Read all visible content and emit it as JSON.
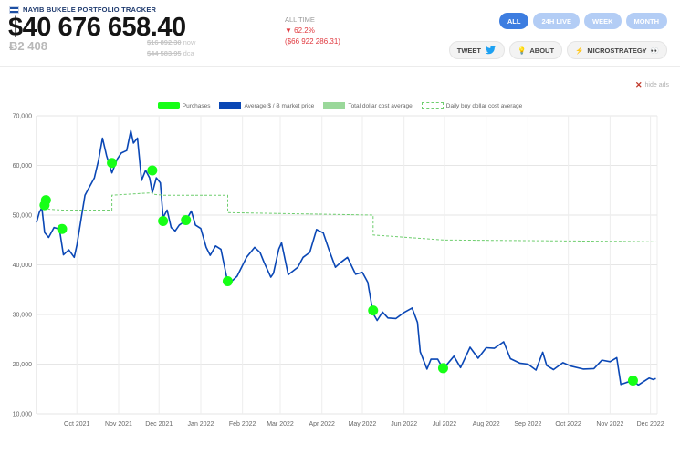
{
  "header": {
    "brand": "NAYIB BUKELE PORTFOLIO TRACKER",
    "portfolio_value": "$40 676 658.40",
    "btc_amount": "Ƀ2 408",
    "price_now": "$16 892.30",
    "price_now_label": "now",
    "price_avg": "$44 583.95",
    "price_avg_label": "dca"
  },
  "alltime": {
    "label": "ALL TIME",
    "percent": "▼ 62.2%",
    "delta": "($66 922 286.31)"
  },
  "range_buttons": [
    "ALL",
    "24H LIVE",
    "WEEK",
    "MONTH"
  ],
  "action_buttons": {
    "tweet": "TWEET",
    "about": "ABOUT",
    "microstrategy": "MICROSTRATEGY",
    "about_icon": "lightbulb-icon",
    "microstrategy_icon": "lightning-icon",
    "microstrategy_suffix": "👀"
  },
  "hide_ads": "hide ads",
  "colors": {
    "price_line": "#0a47b5",
    "purchase_marker": "#16ff16",
    "dca_line": "#6fce6f",
    "accent": "#3d7de0",
    "negative": "#e0383e"
  },
  "chart_data": {
    "type": "line",
    "legend": [
      "Purchases",
      "Average $ / Ƀ market price",
      "Total dollar cost average",
      "Daily buy dollar cost average"
    ],
    "legend_position": "top-center",
    "grid": true,
    "ylim": [
      10000,
      70000
    ],
    "yticks": [
      10000,
      20000,
      30000,
      40000,
      50000,
      60000,
      70000
    ],
    "ytick_labels": [
      "10,000",
      "20,000",
      "30,000",
      "40,000",
      "50,000",
      "60,000",
      "70,000"
    ],
    "xlim": [
      "2021-09-01",
      "2022-12-06"
    ],
    "xticks": [
      "2021-10-01",
      "2021-11-01",
      "2021-12-01",
      "2022-01-01",
      "2022-02-01",
      "2022-03-01",
      "2022-04-01",
      "2022-05-01",
      "2022-06-01",
      "2022-07-01",
      "2022-08-01",
      "2022-09-01",
      "2022-10-01",
      "2022-11-01",
      "2022-12-01"
    ],
    "xtick_labels": [
      "Oct 2021",
      "Nov 2021",
      "Dec 2021",
      "Jan 2022",
      "Feb 2022",
      "Mar 2022",
      "Apr 2022",
      "May 2022",
      "Jun 2022",
      "Jul 2022",
      "Aug 2022",
      "Sep 2022",
      "Oct 2022",
      "Nov 2022",
      "Dec 2022"
    ],
    "series": [
      {
        "name": "Average $ / Ƀ market price",
        "points": [
          [
            "2021-09-01",
            48500
          ],
          [
            "2021-09-03",
            50500
          ],
          [
            "2021-09-05",
            51500
          ],
          [
            "2021-09-07",
            46500
          ],
          [
            "2021-09-10",
            45500
          ],
          [
            "2021-09-14",
            47500
          ],
          [
            "2021-09-18",
            47200
          ],
          [
            "2021-09-21",
            42000
          ],
          [
            "2021-09-25",
            43000
          ],
          [
            "2021-09-29",
            41500
          ],
          [
            "2021-10-01",
            44000
          ],
          [
            "2021-10-04",
            49000
          ],
          [
            "2021-10-07",
            54000
          ],
          [
            "2021-10-10",
            55500
          ],
          [
            "2021-10-14",
            57500
          ],
          [
            "2021-10-17",
            61000
          ],
          [
            "2021-10-20",
            65500
          ],
          [
            "2021-10-23",
            62000
          ],
          [
            "2021-10-27",
            58500
          ],
          [
            "2021-10-31",
            61300
          ],
          [
            "2021-11-03",
            62500
          ],
          [
            "2021-11-07",
            63000
          ],
          [
            "2021-11-10",
            67000
          ],
          [
            "2021-11-12",
            64500
          ],
          [
            "2021-11-15",
            65500
          ],
          [
            "2021-11-18",
            57000
          ],
          [
            "2021-11-21",
            59000
          ],
          [
            "2021-11-24",
            57500
          ],
          [
            "2021-11-26",
            54500
          ],
          [
            "2021-11-29",
            57500
          ],
          [
            "2021-12-02",
            56500
          ],
          [
            "2021-12-04",
            49500
          ],
          [
            "2021-12-07",
            51000
          ],
          [
            "2021-12-10",
            47500
          ],
          [
            "2021-12-13",
            46800
          ],
          [
            "2021-12-16",
            48000
          ],
          [
            "2021-12-21",
            48900
          ],
          [
            "2021-12-25",
            50800
          ],
          [
            "2021-12-28",
            48000
          ],
          [
            "2022-01-01",
            47300
          ],
          [
            "2022-01-05",
            43500
          ],
          [
            "2022-01-08",
            41900
          ],
          [
            "2022-01-12",
            43800
          ],
          [
            "2022-01-16",
            43100
          ],
          [
            "2022-01-21",
            36500
          ],
          [
            "2022-01-24",
            36700
          ],
          [
            "2022-01-28",
            37700
          ],
          [
            "2022-02-04",
            41500
          ],
          [
            "2022-02-10",
            43500
          ],
          [
            "2022-02-14",
            42500
          ],
          [
            "2022-02-17",
            40500
          ],
          [
            "2022-02-22",
            37500
          ],
          [
            "2022-02-24",
            38300
          ],
          [
            "2022-02-28",
            43200
          ],
          [
            "2022-03-02",
            44400
          ],
          [
            "2022-03-07",
            38000
          ],
          [
            "2022-03-14",
            39500
          ],
          [
            "2022-03-18",
            41500
          ],
          [
            "2022-03-23",
            42500
          ],
          [
            "2022-03-28",
            47100
          ],
          [
            "2022-04-02",
            46400
          ],
          [
            "2022-04-06",
            43200
          ],
          [
            "2022-04-11",
            39500
          ],
          [
            "2022-04-15",
            40500
          ],
          [
            "2022-04-20",
            41500
          ],
          [
            "2022-04-26",
            38100
          ],
          [
            "2022-05-01",
            38500
          ],
          [
            "2022-05-05",
            36500
          ],
          [
            "2022-05-09",
            30200
          ],
          [
            "2022-05-12",
            28800
          ],
          [
            "2022-05-16",
            30500
          ],
          [
            "2022-05-20",
            29300
          ],
          [
            "2022-05-26",
            29200
          ],
          [
            "2022-06-01",
            30400
          ],
          [
            "2022-06-07",
            31300
          ],
          [
            "2022-06-11",
            28400
          ],
          [
            "2022-06-13",
            22500
          ],
          [
            "2022-06-18",
            19000
          ],
          [
            "2022-06-21",
            21000
          ],
          [
            "2022-06-26",
            21000
          ],
          [
            "2022-06-30",
            19000
          ],
          [
            "2022-07-08",
            21600
          ],
          [
            "2022-07-13",
            19300
          ],
          [
            "2022-07-20",
            23400
          ],
          [
            "2022-07-26",
            21200
          ],
          [
            "2022-08-01",
            23300
          ],
          [
            "2022-08-07",
            23200
          ],
          [
            "2022-08-14",
            24500
          ],
          [
            "2022-08-19",
            21100
          ],
          [
            "2022-08-26",
            20200
          ],
          [
            "2022-09-01",
            20000
          ],
          [
            "2022-09-07",
            18800
          ],
          [
            "2022-09-12",
            22400
          ],
          [
            "2022-09-15",
            19700
          ],
          [
            "2022-09-20",
            18900
          ],
          [
            "2022-09-27",
            20300
          ],
          [
            "2022-10-03",
            19600
          ],
          [
            "2022-10-12",
            19000
          ],
          [
            "2022-10-20",
            19100
          ],
          [
            "2022-10-26",
            20800
          ],
          [
            "2022-11-01",
            20500
          ],
          [
            "2022-11-06",
            21300
          ],
          [
            "2022-11-09",
            15900
          ],
          [
            "2022-11-13",
            16300
          ],
          [
            "2022-11-18",
            16700
          ],
          [
            "2022-11-22",
            15800
          ],
          [
            "2022-11-26",
            16500
          ],
          [
            "2022-11-30",
            17200
          ],
          [
            "2022-12-03",
            16900
          ],
          [
            "2022-12-05",
            17100
          ]
        ]
      },
      {
        "name": "Daily buy dollar cost average",
        "points": [
          [
            "2021-09-07",
            52000
          ],
          [
            "2021-09-10",
            51200
          ],
          [
            "2021-09-20",
            51000
          ],
          [
            "2021-10-27",
            51000
          ],
          [
            "2021-10-27",
            54000
          ],
          [
            "2021-11-26",
            54500
          ],
          [
            "2021-11-26",
            54200
          ],
          [
            "2021-12-04",
            54000
          ],
          [
            "2022-01-21",
            54000
          ],
          [
            "2022-01-21",
            50500
          ],
          [
            "2022-05-09",
            50000
          ],
          [
            "2022-05-09",
            46000
          ],
          [
            "2022-06-30",
            45000
          ],
          [
            "2022-11-18",
            44700
          ],
          [
            "2022-12-05",
            44600
          ]
        ]
      }
    ],
    "purchases": [
      [
        "2021-09-07",
        52000
      ],
      [
        "2021-09-08",
        53000
      ],
      [
        "2021-09-20",
        47200
      ],
      [
        "2021-10-27",
        60500
      ],
      [
        "2021-11-26",
        59000
      ],
      [
        "2021-12-04",
        48800
      ],
      [
        "2021-12-21",
        49000
      ],
      [
        "2022-01-21",
        36700
      ],
      [
        "2022-05-09",
        30800
      ],
      [
        "2022-06-30",
        19200
      ],
      [
        "2022-11-18",
        16700
      ]
    ]
  }
}
